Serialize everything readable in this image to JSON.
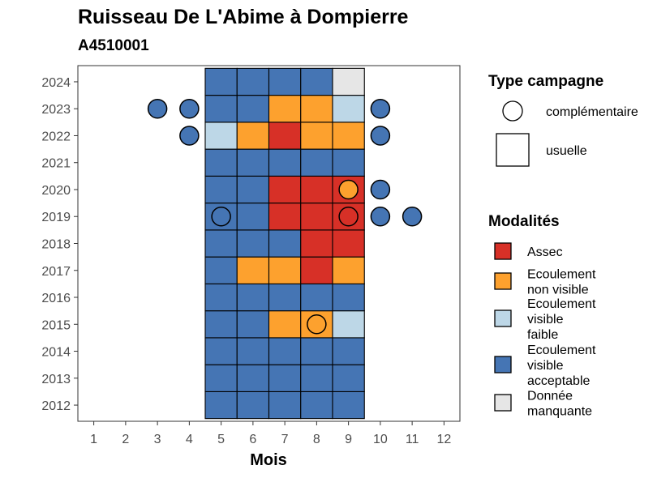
{
  "chart_data": {
    "type": "heatmap",
    "title": "Ruisseau De L'Abime à Dompierre",
    "subtitle": "A4510001",
    "xlabel": "Mois",
    "ylabel": "",
    "x_ticks": [
      1,
      2,
      3,
      4,
      5,
      6,
      7,
      8,
      9,
      10,
      11,
      12
    ],
    "y_ticks": [
      2012,
      2013,
      2014,
      2015,
      2016,
      2017,
      2018,
      2019,
      2020,
      2021,
      2022,
      2023,
      2024
    ],
    "xlim": [
      0.5,
      12.5
    ],
    "ylim": [
      2011.4,
      2024.6
    ],
    "grid": false,
    "legend_position": "right",
    "modalites": [
      {
        "key": "assec",
        "label": "Assec",
        "color": "#D73027"
      },
      {
        "key": "ecoulement_non_visible",
        "label": "Ecoulement non visible",
        "color": "#FDA12E"
      },
      {
        "key": "ecoulement_visible_faible",
        "label": "Ecoulement visible faible",
        "color": "#BDD7E7"
      },
      {
        "key": "ecoulement_visible_acceptable",
        "label": "Ecoulement visible acceptable",
        "color": "#4575B4"
      },
      {
        "key": "donnee_manquante",
        "label": "Donnée manquante",
        "color": "#E6E6E6"
      }
    ],
    "modalites_title": "Modalités",
    "type_campagne_title": "Type campagne",
    "type_campagne": [
      {
        "key": "complementaire",
        "label": "complémentaire",
        "shape": "circle"
      },
      {
        "key": "usuelle",
        "label": "usuelle",
        "shape": "square"
      }
    ],
    "usuelle": [
      {
        "year": 2012,
        "months": [
          5,
          6,
          7,
          8,
          9
        ],
        "values": [
          "ecoulement_visible_acceptable",
          "ecoulement_visible_acceptable",
          "ecoulement_visible_acceptable",
          "ecoulement_visible_acceptable",
          "ecoulement_visible_acceptable"
        ]
      },
      {
        "year": 2013,
        "months": [
          5,
          6,
          7,
          8,
          9
        ],
        "values": [
          "ecoulement_visible_acceptable",
          "ecoulement_visible_acceptable",
          "ecoulement_visible_acceptable",
          "ecoulement_visible_acceptable",
          "ecoulement_visible_acceptable"
        ]
      },
      {
        "year": 2014,
        "months": [
          5,
          6,
          7,
          8,
          9
        ],
        "values": [
          "ecoulement_visible_acceptable",
          "ecoulement_visible_acceptable",
          "ecoulement_visible_acceptable",
          "ecoulement_visible_acceptable",
          "ecoulement_visible_acceptable"
        ]
      },
      {
        "year": 2015,
        "months": [
          5,
          6,
          7,
          8,
          9
        ],
        "values": [
          "ecoulement_visible_acceptable",
          "ecoulement_visible_acceptable",
          "ecoulement_non_visible",
          "ecoulement_non_visible",
          "ecoulement_visible_faible"
        ]
      },
      {
        "year": 2016,
        "months": [
          5,
          6,
          7,
          8,
          9
        ],
        "values": [
          "ecoulement_visible_acceptable",
          "ecoulement_visible_acceptable",
          "ecoulement_visible_acceptable",
          "ecoulement_visible_acceptable",
          "ecoulement_visible_acceptable"
        ]
      },
      {
        "year": 2017,
        "months": [
          5,
          6,
          7,
          8,
          9
        ],
        "values": [
          "ecoulement_visible_acceptable",
          "ecoulement_non_visible",
          "ecoulement_non_visible",
          "assec",
          "ecoulement_non_visible"
        ]
      },
      {
        "year": 2018,
        "months": [
          5,
          6,
          7,
          8,
          9
        ],
        "values": [
          "ecoulement_visible_acceptable",
          "ecoulement_visible_acceptable",
          "ecoulement_visible_acceptable",
          "assec",
          "assec"
        ]
      },
      {
        "year": 2019,
        "months": [
          5,
          6,
          7,
          8,
          9
        ],
        "values": [
          "ecoulement_visible_acceptable",
          "ecoulement_visible_acceptable",
          "assec",
          "assec",
          "assec"
        ]
      },
      {
        "year": 2020,
        "months": [
          5,
          6,
          7,
          8,
          9
        ],
        "values": [
          "ecoulement_visible_acceptable",
          "ecoulement_visible_acceptable",
          "assec",
          "assec",
          "assec"
        ]
      },
      {
        "year": 2021,
        "months": [
          5,
          6,
          7,
          8,
          9
        ],
        "values": [
          "ecoulement_visible_acceptable",
          "ecoulement_visible_acceptable",
          "ecoulement_visible_acceptable",
          "ecoulement_visible_acceptable",
          "ecoulement_visible_acceptable"
        ]
      },
      {
        "year": 2022,
        "months": [
          5,
          6,
          7,
          8,
          9
        ],
        "values": [
          "ecoulement_visible_faible",
          "ecoulement_non_visible",
          "assec",
          "ecoulement_non_visible",
          "ecoulement_non_visible"
        ]
      },
      {
        "year": 2023,
        "months": [
          5,
          6,
          7,
          8,
          9
        ],
        "values": [
          "ecoulement_visible_acceptable",
          "ecoulement_visible_acceptable",
          "ecoulement_non_visible",
          "ecoulement_non_visible",
          "ecoulement_visible_faible"
        ]
      },
      {
        "year": 2024,
        "months": [
          5,
          6,
          7,
          8,
          9
        ],
        "values": [
          "ecoulement_visible_acceptable",
          "ecoulement_visible_acceptable",
          "ecoulement_visible_acceptable",
          "ecoulement_visible_acceptable",
          "donnee_manquante"
        ]
      }
    ],
    "complementaire": [
      {
        "year": 2023,
        "month": 3,
        "value": "ecoulement_visible_acceptable"
      },
      {
        "year": 2023,
        "month": 4,
        "value": "ecoulement_visible_acceptable"
      },
      {
        "year": 2023,
        "month": 10,
        "value": "ecoulement_visible_acceptable"
      },
      {
        "year": 2022,
        "month": 4,
        "value": "ecoulement_visible_acceptable"
      },
      {
        "year": 2022,
        "month": 10,
        "value": "ecoulement_visible_acceptable"
      },
      {
        "year": 2020,
        "month": 9,
        "value": "ecoulement_non_visible"
      },
      {
        "year": 2020,
        "month": 10,
        "value": "ecoulement_visible_acceptable"
      },
      {
        "year": 2019,
        "month": 5,
        "value": "ecoulement_visible_acceptable"
      },
      {
        "year": 2019,
        "month": 9,
        "value": "assec"
      },
      {
        "year": 2019,
        "month": 10,
        "value": "ecoulement_visible_acceptable"
      },
      {
        "year": 2019,
        "month": 11,
        "value": "ecoulement_visible_acceptable"
      },
      {
        "year": 2015,
        "month": 8,
        "value": "ecoulement_non_visible"
      }
    ]
  }
}
